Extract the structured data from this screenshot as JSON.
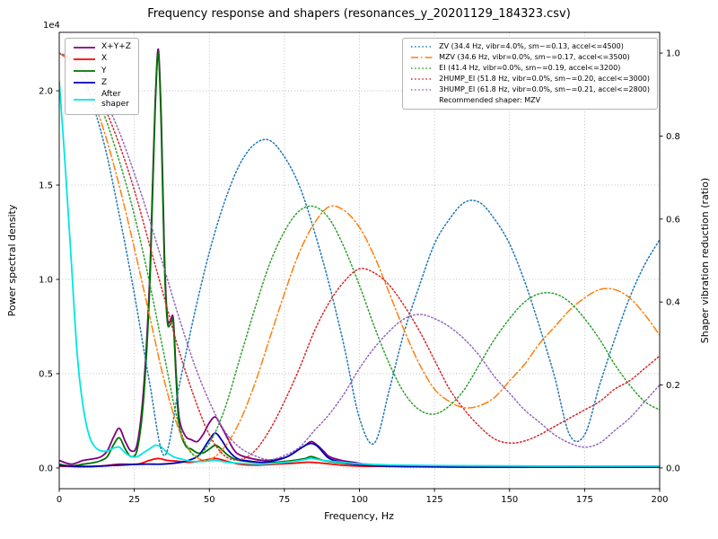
{
  "title": "Frequency response and shapers (resonances_y_20201129_184323.csv)",
  "axes": {
    "x": {
      "label": "Frequency, Hz",
      "lim": [
        0,
        200
      ],
      "ticks": [
        0,
        25,
        50,
        75,
        100,
        125,
        150,
        175,
        200
      ]
    },
    "y_left": {
      "label": "Power spectral density",
      "offset_text": "1e4",
      "lim": [
        -0.11,
        2.31
      ],
      "ticks": [
        0,
        0.5,
        1,
        1.5,
        2
      ]
    },
    "y_right": {
      "label": "Shaper vibration reduction (ratio)",
      "lim": [
        -0.05,
        1.05
      ],
      "ticks": [
        0,
        0.2,
        0.4,
        0.6,
        0.8,
        1
      ]
    }
  },
  "chart_data": {
    "type": "line",
    "title": "Frequency response and shapers (resonances_y_20201129_184323.csv)",
    "xlabel": "Frequency, Hz",
    "ylabel_left": "Power spectral density (values in units of 1e4)",
    "ylabel_right": "Shaper vibration reduction (ratio)",
    "recommended_note": "Recommended shaper: MZV",
    "x": [
      0,
      5,
      10,
      15,
      20,
      25,
      30,
      35,
      40,
      45,
      50,
      55,
      60,
      65,
      70,
      75,
      80,
      85,
      90,
      95,
      100,
      105,
      110,
      115,
      120,
      125,
      130,
      135,
      140,
      145,
      150,
      155,
      160,
      165,
      170,
      175,
      180,
      185,
      190,
      195,
      200
    ],
    "series": [
      {
        "name": "X+Y+Z",
        "group": "psd",
        "axis": "left",
        "label": "X+Y+Z",
        "color": "#800080",
        "style": "solid",
        "width": 1.8,
        "points": [
          [
            0,
            0.04
          ],
          [
            4,
            0.02
          ],
          [
            8,
            0.04
          ],
          [
            12,
            0.05
          ],
          [
            14,
            0.06
          ],
          [
            16,
            0.09
          ],
          [
            18,
            0.16
          ],
          [
            20,
            0.21
          ],
          [
            22,
            0.14
          ],
          [
            24,
            0.09
          ],
          [
            26,
            0.13
          ],
          [
            28,
            0.4
          ],
          [
            30,
            0.95
          ],
          [
            31,
            1.45
          ],
          [
            32,
            1.95
          ],
          [
            33,
            2.22
          ],
          [
            34,
            1.85
          ],
          [
            35,
            1.15
          ],
          [
            36,
            0.8
          ],
          [
            37,
            0.78
          ],
          [
            38,
            0.79
          ],
          [
            39,
            0.48
          ],
          [
            40,
            0.26
          ],
          [
            42,
            0.17
          ],
          [
            44,
            0.15
          ],
          [
            46,
            0.14
          ],
          [
            48,
            0.18
          ],
          [
            50,
            0.24
          ],
          [
            52,
            0.27
          ],
          [
            54,
            0.22
          ],
          [
            56,
            0.16
          ],
          [
            58,
            0.1
          ],
          [
            60,
            0.07
          ],
          [
            64,
            0.05
          ],
          [
            68,
            0.04
          ],
          [
            72,
            0.045
          ],
          [
            76,
            0.06
          ],
          [
            80,
            0.1
          ],
          [
            82,
            0.12
          ],
          [
            84,
            0.14
          ],
          [
            86,
            0.12
          ],
          [
            88,
            0.09
          ],
          [
            90,
            0.06
          ],
          [
            94,
            0.04
          ],
          [
            98,
            0.03
          ],
          [
            102,
            0.02
          ],
          [
            106,
            0.015
          ],
          [
            110,
            0.01
          ],
          [
            120,
            0.007
          ],
          [
            140,
            0.005
          ],
          [
            160,
            0.005
          ],
          [
            180,
            0.005
          ],
          [
            200,
            0.005
          ]
        ]
      },
      {
        "name": "X",
        "group": "psd",
        "axis": "left",
        "label": "X",
        "color": "#ff0000",
        "style": "solid",
        "width": 1.8,
        "points": [
          [
            0,
            0.01
          ],
          [
            8,
            0.006
          ],
          [
            14,
            0.01
          ],
          [
            20,
            0.02
          ],
          [
            26,
            0.02
          ],
          [
            30,
            0.04
          ],
          [
            33,
            0.05
          ],
          [
            36,
            0.04
          ],
          [
            40,
            0.035
          ],
          [
            44,
            0.03
          ],
          [
            48,
            0.04
          ],
          [
            52,
            0.05
          ],
          [
            56,
            0.035
          ],
          [
            60,
            0.02
          ],
          [
            66,
            0.015
          ],
          [
            72,
            0.02
          ],
          [
            78,
            0.025
          ],
          [
            82,
            0.03
          ],
          [
            84,
            0.03
          ],
          [
            88,
            0.025
          ],
          [
            94,
            0.015
          ],
          [
            100,
            0.01
          ],
          [
            110,
            0.008
          ],
          [
            130,
            0.006
          ],
          [
            160,
            0.005
          ],
          [
            200,
            0.005
          ]
        ]
      },
      {
        "name": "Y",
        "group": "psd",
        "axis": "left",
        "label": "Y",
        "color": "#007000",
        "style": "solid",
        "width": 1.8,
        "points": [
          [
            0,
            0.02
          ],
          [
            4,
            0.01
          ],
          [
            8,
            0.02
          ],
          [
            12,
            0.03
          ],
          [
            14,
            0.04
          ],
          [
            16,
            0.06
          ],
          [
            18,
            0.12
          ],
          [
            20,
            0.16
          ],
          [
            22,
            0.1
          ],
          [
            24,
            0.06
          ],
          [
            26,
            0.1
          ],
          [
            28,
            0.35
          ],
          [
            30,
            0.9
          ],
          [
            31,
            1.4
          ],
          [
            32,
            1.92
          ],
          [
            33,
            2.2
          ],
          [
            34,
            1.8
          ],
          [
            35,
            1.1
          ],
          [
            36,
            0.78
          ],
          [
            37,
            0.76
          ],
          [
            38,
            0.77
          ],
          [
            39,
            0.45
          ],
          [
            40,
            0.22
          ],
          [
            42,
            0.12
          ],
          [
            44,
            0.1
          ],
          [
            46,
            0.08
          ],
          [
            48,
            0.08
          ],
          [
            50,
            0.1
          ],
          [
            52,
            0.12
          ],
          [
            54,
            0.1
          ],
          [
            56,
            0.07
          ],
          [
            58,
            0.05
          ],
          [
            60,
            0.04
          ],
          [
            66,
            0.03
          ],
          [
            72,
            0.03
          ],
          [
            78,
            0.04
          ],
          [
            82,
            0.05
          ],
          [
            84,
            0.06
          ],
          [
            88,
            0.04
          ],
          [
            92,
            0.03
          ],
          [
            98,
            0.02
          ],
          [
            104,
            0.015
          ],
          [
            110,
            0.01
          ],
          [
            120,
            0.006
          ],
          [
            140,
            0.004
          ],
          [
            160,
            0.004
          ],
          [
            180,
            0.004
          ],
          [
            200,
            0.004
          ]
        ]
      },
      {
        "name": "Z",
        "group": "psd",
        "axis": "left",
        "label": "Z",
        "color": "#0000b8",
        "style": "solid",
        "width": 1.8,
        "points": [
          [
            0,
            0.012
          ],
          [
            10,
            0.008
          ],
          [
            20,
            0.015
          ],
          [
            28,
            0.02
          ],
          [
            34,
            0.02
          ],
          [
            38,
            0.025
          ],
          [
            42,
            0.035
          ],
          [
            46,
            0.06
          ],
          [
            48,
            0.1
          ],
          [
            50,
            0.15
          ],
          [
            52,
            0.185
          ],
          [
            54,
            0.15
          ],
          [
            56,
            0.1
          ],
          [
            58,
            0.065
          ],
          [
            60,
            0.045
          ],
          [
            64,
            0.035
          ],
          [
            68,
            0.03
          ],
          [
            72,
            0.04
          ],
          [
            76,
            0.06
          ],
          [
            80,
            0.1
          ],
          [
            82,
            0.12
          ],
          [
            84,
            0.13
          ],
          [
            86,
            0.115
          ],
          [
            88,
            0.08
          ],
          [
            90,
            0.05
          ],
          [
            94,
            0.03
          ],
          [
            98,
            0.02
          ],
          [
            104,
            0.012
          ],
          [
            110,
            0.009
          ],
          [
            120,
            0.007
          ],
          [
            140,
            0.005
          ],
          [
            160,
            0.005
          ],
          [
            180,
            0.005
          ],
          [
            200,
            0.005
          ]
        ]
      },
      {
        "name": "After shaper",
        "group": "psd",
        "axis": "left",
        "label": "After\nshaper",
        "color": "#00e5e5",
        "style": "solid",
        "width": 1.8,
        "points": [
          [
            0,
            2.05
          ],
          [
            2,
            1.6
          ],
          [
            4,
            1.1
          ],
          [
            6,
            0.6
          ],
          [
            8,
            0.32
          ],
          [
            10,
            0.17
          ],
          [
            12,
            0.11
          ],
          [
            14,
            0.09
          ],
          [
            16,
            0.09
          ],
          [
            18,
            0.105
          ],
          [
            20,
            0.11
          ],
          [
            22,
            0.08
          ],
          [
            24,
            0.06
          ],
          [
            26,
            0.06
          ],
          [
            28,
            0.08
          ],
          [
            30,
            0.1
          ],
          [
            32,
            0.12
          ],
          [
            34,
            0.11
          ],
          [
            36,
            0.08
          ],
          [
            38,
            0.06
          ],
          [
            40,
            0.05
          ],
          [
            44,
            0.035
          ],
          [
            48,
            0.035
          ],
          [
            52,
            0.04
          ],
          [
            56,
            0.03
          ],
          [
            60,
            0.025
          ],
          [
            66,
            0.02
          ],
          [
            72,
            0.025
          ],
          [
            78,
            0.035
          ],
          [
            82,
            0.045
          ],
          [
            84,
            0.05
          ],
          [
            88,
            0.04
          ],
          [
            94,
            0.03
          ],
          [
            100,
            0.022
          ],
          [
            110,
            0.016
          ],
          [
            130,
            0.012
          ],
          [
            160,
            0.01
          ],
          [
            200,
            0.01
          ]
        ]
      },
      {
        "name": "ZV",
        "group": "shaper",
        "axis": "right",
        "label": "ZV (34.4 Hz, vibr=4.0%, sm~=0.13, accel<=4500)",
        "color": "#1f77b4",
        "style": "dotted",
        "width": 1.5,
        "values": [
          1.0,
          0.97,
          0.9,
          0.78,
          0.61,
          0.42,
          0.21,
          0.03,
          0.2,
          0.37,
          0.52,
          0.64,
          0.73,
          0.78,
          0.79,
          0.75,
          0.68,
          0.57,
          0.44,
          0.29,
          0.12,
          0.06,
          0.19,
          0.33,
          0.44,
          0.54,
          0.6,
          0.64,
          0.64,
          0.6,
          0.54,
          0.45,
          0.34,
          0.22,
          0.08,
          0.08,
          0.2,
          0.31,
          0.41,
          0.49,
          0.55
        ]
      },
      {
        "name": "MZV",
        "group": "shaper",
        "axis": "right",
        "label": "MZV (34.6 Hz, vibr=0.0%, sm~=0.17, accel<=3500)",
        "color": "#ff7f0e",
        "style": "dashdot",
        "width": 1.5,
        "values": [
          1.0,
          0.97,
          0.91,
          0.81,
          0.68,
          0.53,
          0.37,
          0.21,
          0.09,
          0.03,
          0.02,
          0.05,
          0.11,
          0.2,
          0.31,
          0.42,
          0.52,
          0.59,
          0.63,
          0.62,
          0.58,
          0.51,
          0.42,
          0.33,
          0.25,
          0.19,
          0.16,
          0.145,
          0.15,
          0.17,
          0.21,
          0.25,
          0.3,
          0.34,
          0.38,
          0.41,
          0.43,
          0.43,
          0.41,
          0.37,
          0.32
        ]
      },
      {
        "name": "EI",
        "group": "shaper",
        "axis": "right",
        "label": "EI (41.4 Hz, vibr=0.0%, sm~=0.19, accel<=3200)",
        "color": "#2ca02c",
        "style": "dotted",
        "width": 1.5,
        "values": [
          1.0,
          0.98,
          0.93,
          0.85,
          0.74,
          0.61,
          0.45,
          0.27,
          0.1,
          0.03,
          0.06,
          0.14,
          0.26,
          0.38,
          0.49,
          0.57,
          0.62,
          0.63,
          0.6,
          0.53,
          0.44,
          0.34,
          0.25,
          0.18,
          0.14,
          0.13,
          0.15,
          0.19,
          0.25,
          0.31,
          0.36,
          0.4,
          0.42,
          0.42,
          0.4,
          0.36,
          0.31,
          0.25,
          0.2,
          0.16,
          0.14
        ]
      },
      {
        "name": "2HUMP_EI",
        "group": "shaper",
        "axis": "right",
        "label": "2HUMP_EI (51.8 Hz, vibr=0.0%, sm~=0.20, accel<=3000)",
        "color": "#d62728",
        "style": "dotted",
        "width": 1.5,
        "values": [
          1.0,
          0.98,
          0.94,
          0.87,
          0.78,
          0.67,
          0.54,
          0.41,
          0.28,
          0.17,
          0.08,
          0.03,
          0.02,
          0.04,
          0.09,
          0.16,
          0.24,
          0.33,
          0.4,
          0.45,
          0.48,
          0.47,
          0.44,
          0.39,
          0.33,
          0.26,
          0.19,
          0.14,
          0.1,
          0.07,
          0.06,
          0.065,
          0.08,
          0.1,
          0.12,
          0.14,
          0.16,
          0.19,
          0.21,
          0.24,
          0.27
        ]
      },
      {
        "name": "3HUMP_EI",
        "group": "shaper",
        "axis": "right",
        "label": "3HUMP_EI (61.8 Hz, vibr=0.0%, sm~=0.21, accel<=2800)",
        "color": "#9467bd",
        "style": "dotted",
        "width": 1.5,
        "values": [
          1.0,
          0.985,
          0.95,
          0.89,
          0.81,
          0.71,
          0.6,
          0.48,
          0.36,
          0.25,
          0.16,
          0.09,
          0.05,
          0.03,
          0.02,
          0.03,
          0.05,
          0.09,
          0.13,
          0.18,
          0.24,
          0.29,
          0.33,
          0.36,
          0.37,
          0.36,
          0.34,
          0.31,
          0.27,
          0.22,
          0.18,
          0.14,
          0.11,
          0.08,
          0.06,
          0.05,
          0.06,
          0.09,
          0.12,
          0.16,
          0.2
        ]
      }
    ]
  }
}
